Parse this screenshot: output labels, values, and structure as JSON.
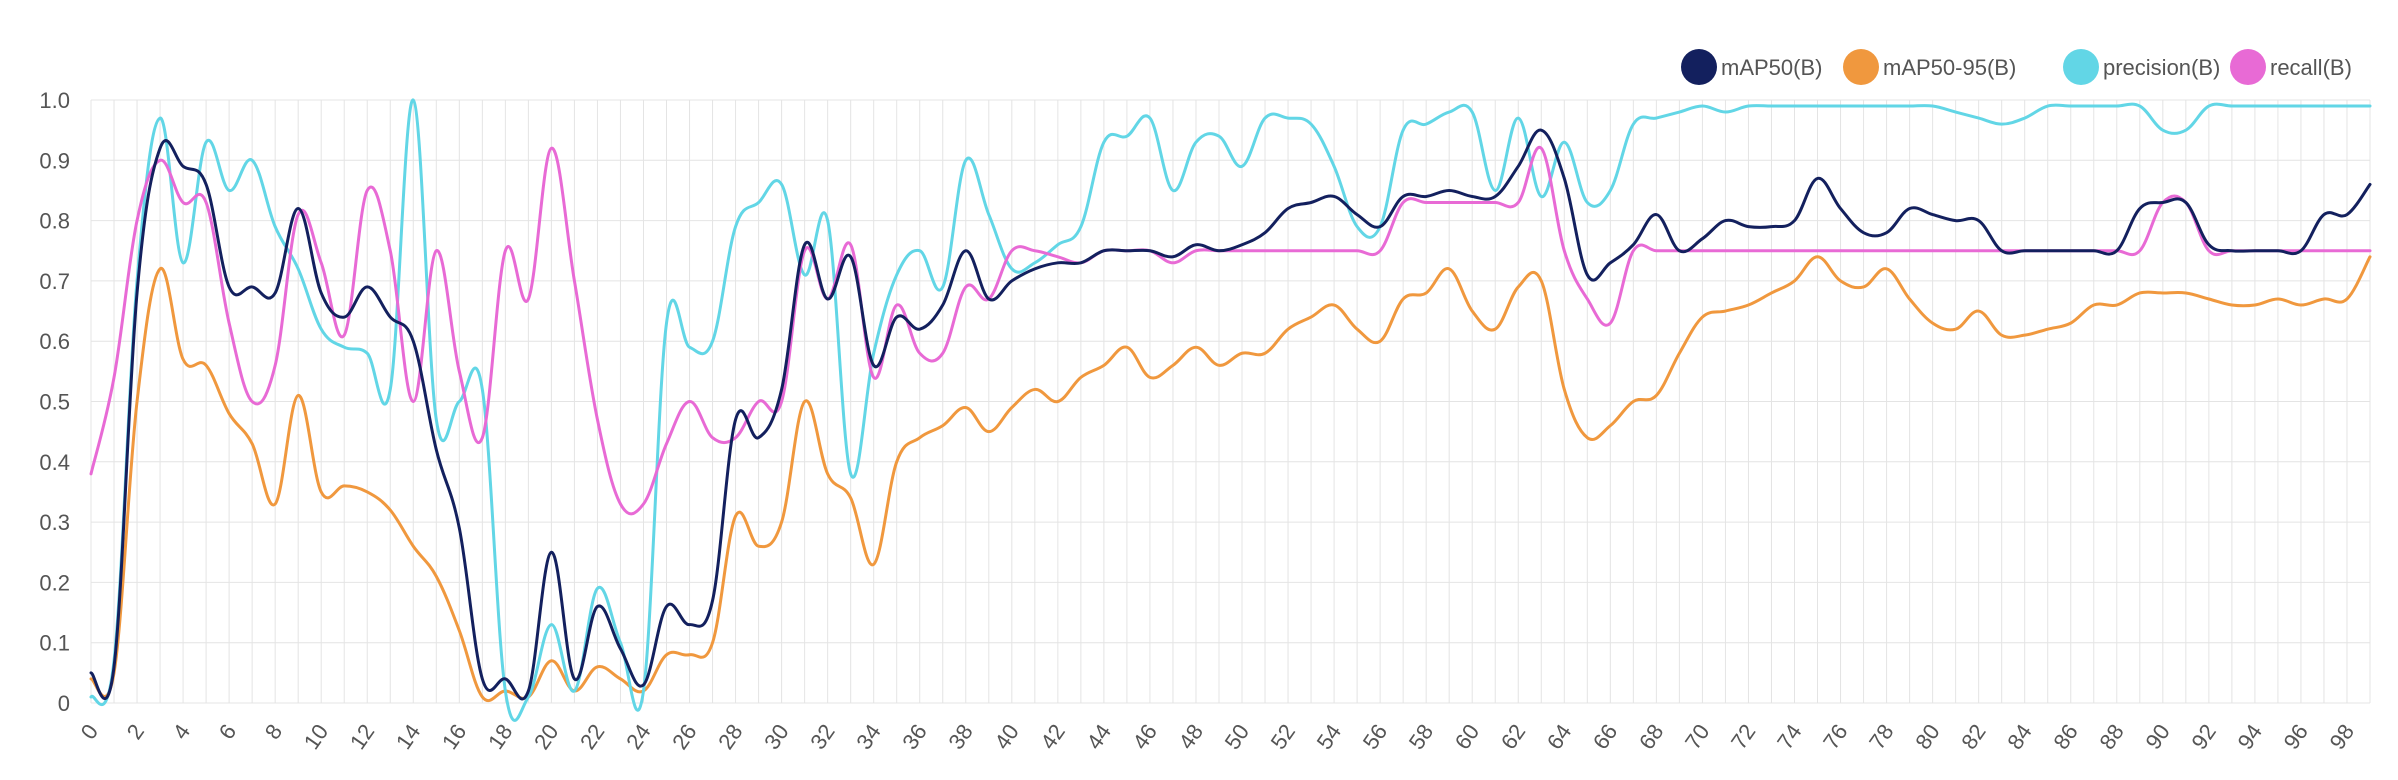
{
  "chart_data": {
    "type": "line",
    "x": [
      0,
      1,
      2,
      3,
      4,
      5,
      6,
      7,
      8,
      9,
      10,
      11,
      12,
      13,
      14,
      15,
      16,
      17,
      18,
      19,
      20,
      21,
      22,
      23,
      24,
      25,
      26,
      27,
      28,
      29,
      30,
      31,
      32,
      33,
      34,
      35,
      36,
      37,
      38,
      39,
      40,
      41,
      42,
      43,
      44,
      45,
      46,
      47,
      48,
      49,
      50,
      51,
      52,
      53,
      54,
      55,
      56,
      57,
      58,
      59,
      60,
      61,
      62,
      63,
      64,
      65,
      66,
      67,
      68,
      69,
      70,
      71,
      72,
      73,
      74,
      75,
      76,
      77,
      78,
      79,
      80,
      81,
      82,
      83,
      84,
      85,
      86,
      87,
      88,
      89,
      90,
      91,
      92,
      93,
      94,
      95,
      96,
      97,
      98,
      99
    ],
    "ylim": [
      0,
      1.0
    ],
    "yticks": [
      "0",
      "0.1",
      "0.2",
      "0.3",
      "0.4",
      "0.5",
      "0.6",
      "0.7",
      "0.8",
      "0.9",
      "1.0"
    ],
    "ytick_values": [
      0,
      0.1,
      0.2,
      0.3,
      0.4,
      0.5,
      0.6,
      0.7,
      0.8,
      0.9,
      1.0
    ],
    "xticks": [
      "0",
      "2",
      "4",
      "6",
      "8",
      "10",
      "12",
      "14",
      "16",
      "18",
      "20",
      "22",
      "24",
      "26",
      "28",
      "30",
      "32",
      "34",
      "36",
      "38",
      "40",
      "42",
      "44",
      "46",
      "48",
      "50",
      "52",
      "54",
      "56",
      "58",
      "60",
      "62",
      "64",
      "66",
      "68",
      "70",
      "72",
      "74",
      "76",
      "78",
      "80",
      "82",
      "84",
      "86",
      "88",
      "90",
      "92",
      "94",
      "96",
      "98"
    ],
    "grid": true,
    "legend_position": "top-right",
    "series": [
      {
        "name": "mAP50(B)",
        "color": "#13205e",
        "values": [
          0.05,
          0.06,
          0.68,
          0.92,
          0.89,
          0.86,
          0.69,
          0.69,
          0.68,
          0.82,
          0.68,
          0.64,
          0.69,
          0.64,
          0.6,
          0.42,
          0.29,
          0.04,
          0.04,
          0.02,
          0.25,
          0.04,
          0.16,
          0.09,
          0.03,
          0.16,
          0.13,
          0.17,
          0.47,
          0.44,
          0.52,
          0.76,
          0.67,
          0.74,
          0.56,
          0.64,
          0.62,
          0.66,
          0.75,
          0.67,
          0.7,
          0.72,
          0.73,
          0.73,
          0.75,
          0.75,
          0.75,
          0.74,
          0.76,
          0.75,
          0.76,
          0.78,
          0.82,
          0.83,
          0.84,
          0.81,
          0.79,
          0.84,
          0.84,
          0.85,
          0.84,
          0.84,
          0.89,
          0.95,
          0.87,
          0.71,
          0.73,
          0.76,
          0.81,
          0.75,
          0.77,
          0.8,
          0.79,
          0.79,
          0.8,
          0.87,
          0.82,
          0.78,
          0.78,
          0.82,
          0.81,
          0.8,
          0.8,
          0.75,
          0.75,
          0.75,
          0.75,
          0.75,
          0.75,
          0.82,
          0.83,
          0.83,
          0.76,
          0.75,
          0.75,
          0.75,
          0.75,
          0.81,
          0.81,
          0.86
        ]
      },
      {
        "name": "mAP50-95(B)",
        "color": "#f0983e",
        "values": [
          0.04,
          0.05,
          0.5,
          0.72,
          0.57,
          0.56,
          0.48,
          0.43,
          0.33,
          0.51,
          0.35,
          0.36,
          0.35,
          0.32,
          0.26,
          0.21,
          0.12,
          0.01,
          0.02,
          0.01,
          0.07,
          0.02,
          0.06,
          0.04,
          0.02,
          0.08,
          0.08,
          0.1,
          0.31,
          0.26,
          0.3,
          0.5,
          0.38,
          0.34,
          0.23,
          0.4,
          0.44,
          0.46,
          0.49,
          0.45,
          0.49,
          0.52,
          0.5,
          0.54,
          0.56,
          0.59,
          0.54,
          0.56,
          0.59,
          0.56,
          0.58,
          0.58,
          0.62,
          0.64,
          0.66,
          0.62,
          0.6,
          0.67,
          0.68,
          0.72,
          0.65,
          0.62,
          0.69,
          0.7,
          0.52,
          0.44,
          0.46,
          0.5,
          0.51,
          0.58,
          0.64,
          0.65,
          0.66,
          0.68,
          0.7,
          0.74,
          0.7,
          0.69,
          0.72,
          0.67,
          0.63,
          0.62,
          0.65,
          0.61,
          0.61,
          0.62,
          0.63,
          0.66,
          0.66,
          0.68,
          0.68,
          0.68,
          0.67,
          0.66,
          0.66,
          0.67,
          0.66,
          0.67,
          0.67,
          0.74
        ]
      },
      {
        "name": "precision(B)",
        "color": "#62d6e6",
        "values": [
          0.01,
          0.07,
          0.7,
          0.97,
          0.73,
          0.93,
          0.85,
          0.9,
          0.79,
          0.72,
          0.62,
          0.59,
          0.58,
          0.52,
          1.0,
          0.47,
          0.5,
          0.52,
          0.02,
          0.01,
          0.13,
          0.02,
          0.19,
          0.1,
          0.02,
          0.63,
          0.59,
          0.6,
          0.79,
          0.83,
          0.86,
          0.71,
          0.8,
          0.38,
          0.58,
          0.71,
          0.75,
          0.69,
          0.9,
          0.81,
          0.72,
          0.73,
          0.76,
          0.79,
          0.93,
          0.94,
          0.97,
          0.85,
          0.93,
          0.94,
          0.89,
          0.97,
          0.97,
          0.96,
          0.89,
          0.79,
          0.79,
          0.95,
          0.96,
          0.98,
          0.98,
          0.85,
          0.97,
          0.84,
          0.93,
          0.83,
          0.85,
          0.96,
          0.97,
          0.98,
          0.99,
          0.98,
          0.99,
          0.99,
          0.99,
          0.99,
          0.99,
          0.99,
          0.99,
          0.99,
          0.99,
          0.98,
          0.97,
          0.96,
          0.97,
          0.99,
          0.99,
          0.99,
          0.99,
          0.99,
          0.95,
          0.95,
          0.99,
          0.99,
          0.99,
          0.99,
          0.99,
          0.99,
          0.99,
          0.99
        ]
      },
      {
        "name": "recall(B)",
        "color": "#e86ad5",
        "values": [
          0.38,
          0.54,
          0.8,
          0.9,
          0.83,
          0.83,
          0.63,
          0.5,
          0.56,
          0.81,
          0.73,
          0.61,
          0.85,
          0.75,
          0.5,
          0.75,
          0.55,
          0.44,
          0.75,
          0.67,
          0.92,
          0.7,
          0.47,
          0.33,
          0.33,
          0.43,
          0.5,
          0.44,
          0.44,
          0.5,
          0.5,
          0.75,
          0.67,
          0.76,
          0.54,
          0.66,
          0.58,
          0.58,
          0.69,
          0.67,
          0.75,
          0.75,
          0.74,
          0.73,
          0.75,
          0.75,
          0.75,
          0.73,
          0.75,
          0.75,
          0.75,
          0.75,
          0.75,
          0.75,
          0.75,
          0.75,
          0.75,
          0.83,
          0.83,
          0.83,
          0.83,
          0.83,
          0.83,
          0.92,
          0.75,
          0.67,
          0.63,
          0.75,
          0.75,
          0.75,
          0.75,
          0.75,
          0.75,
          0.75,
          0.75,
          0.75,
          0.75,
          0.75,
          0.75,
          0.75,
          0.75,
          0.75,
          0.75,
          0.75,
          0.75,
          0.75,
          0.75,
          0.75,
          0.75,
          0.75,
          0.83,
          0.83,
          0.75,
          0.75,
          0.75,
          0.75,
          0.75,
          0.75,
          0.75,
          0.75
        ]
      }
    ]
  }
}
